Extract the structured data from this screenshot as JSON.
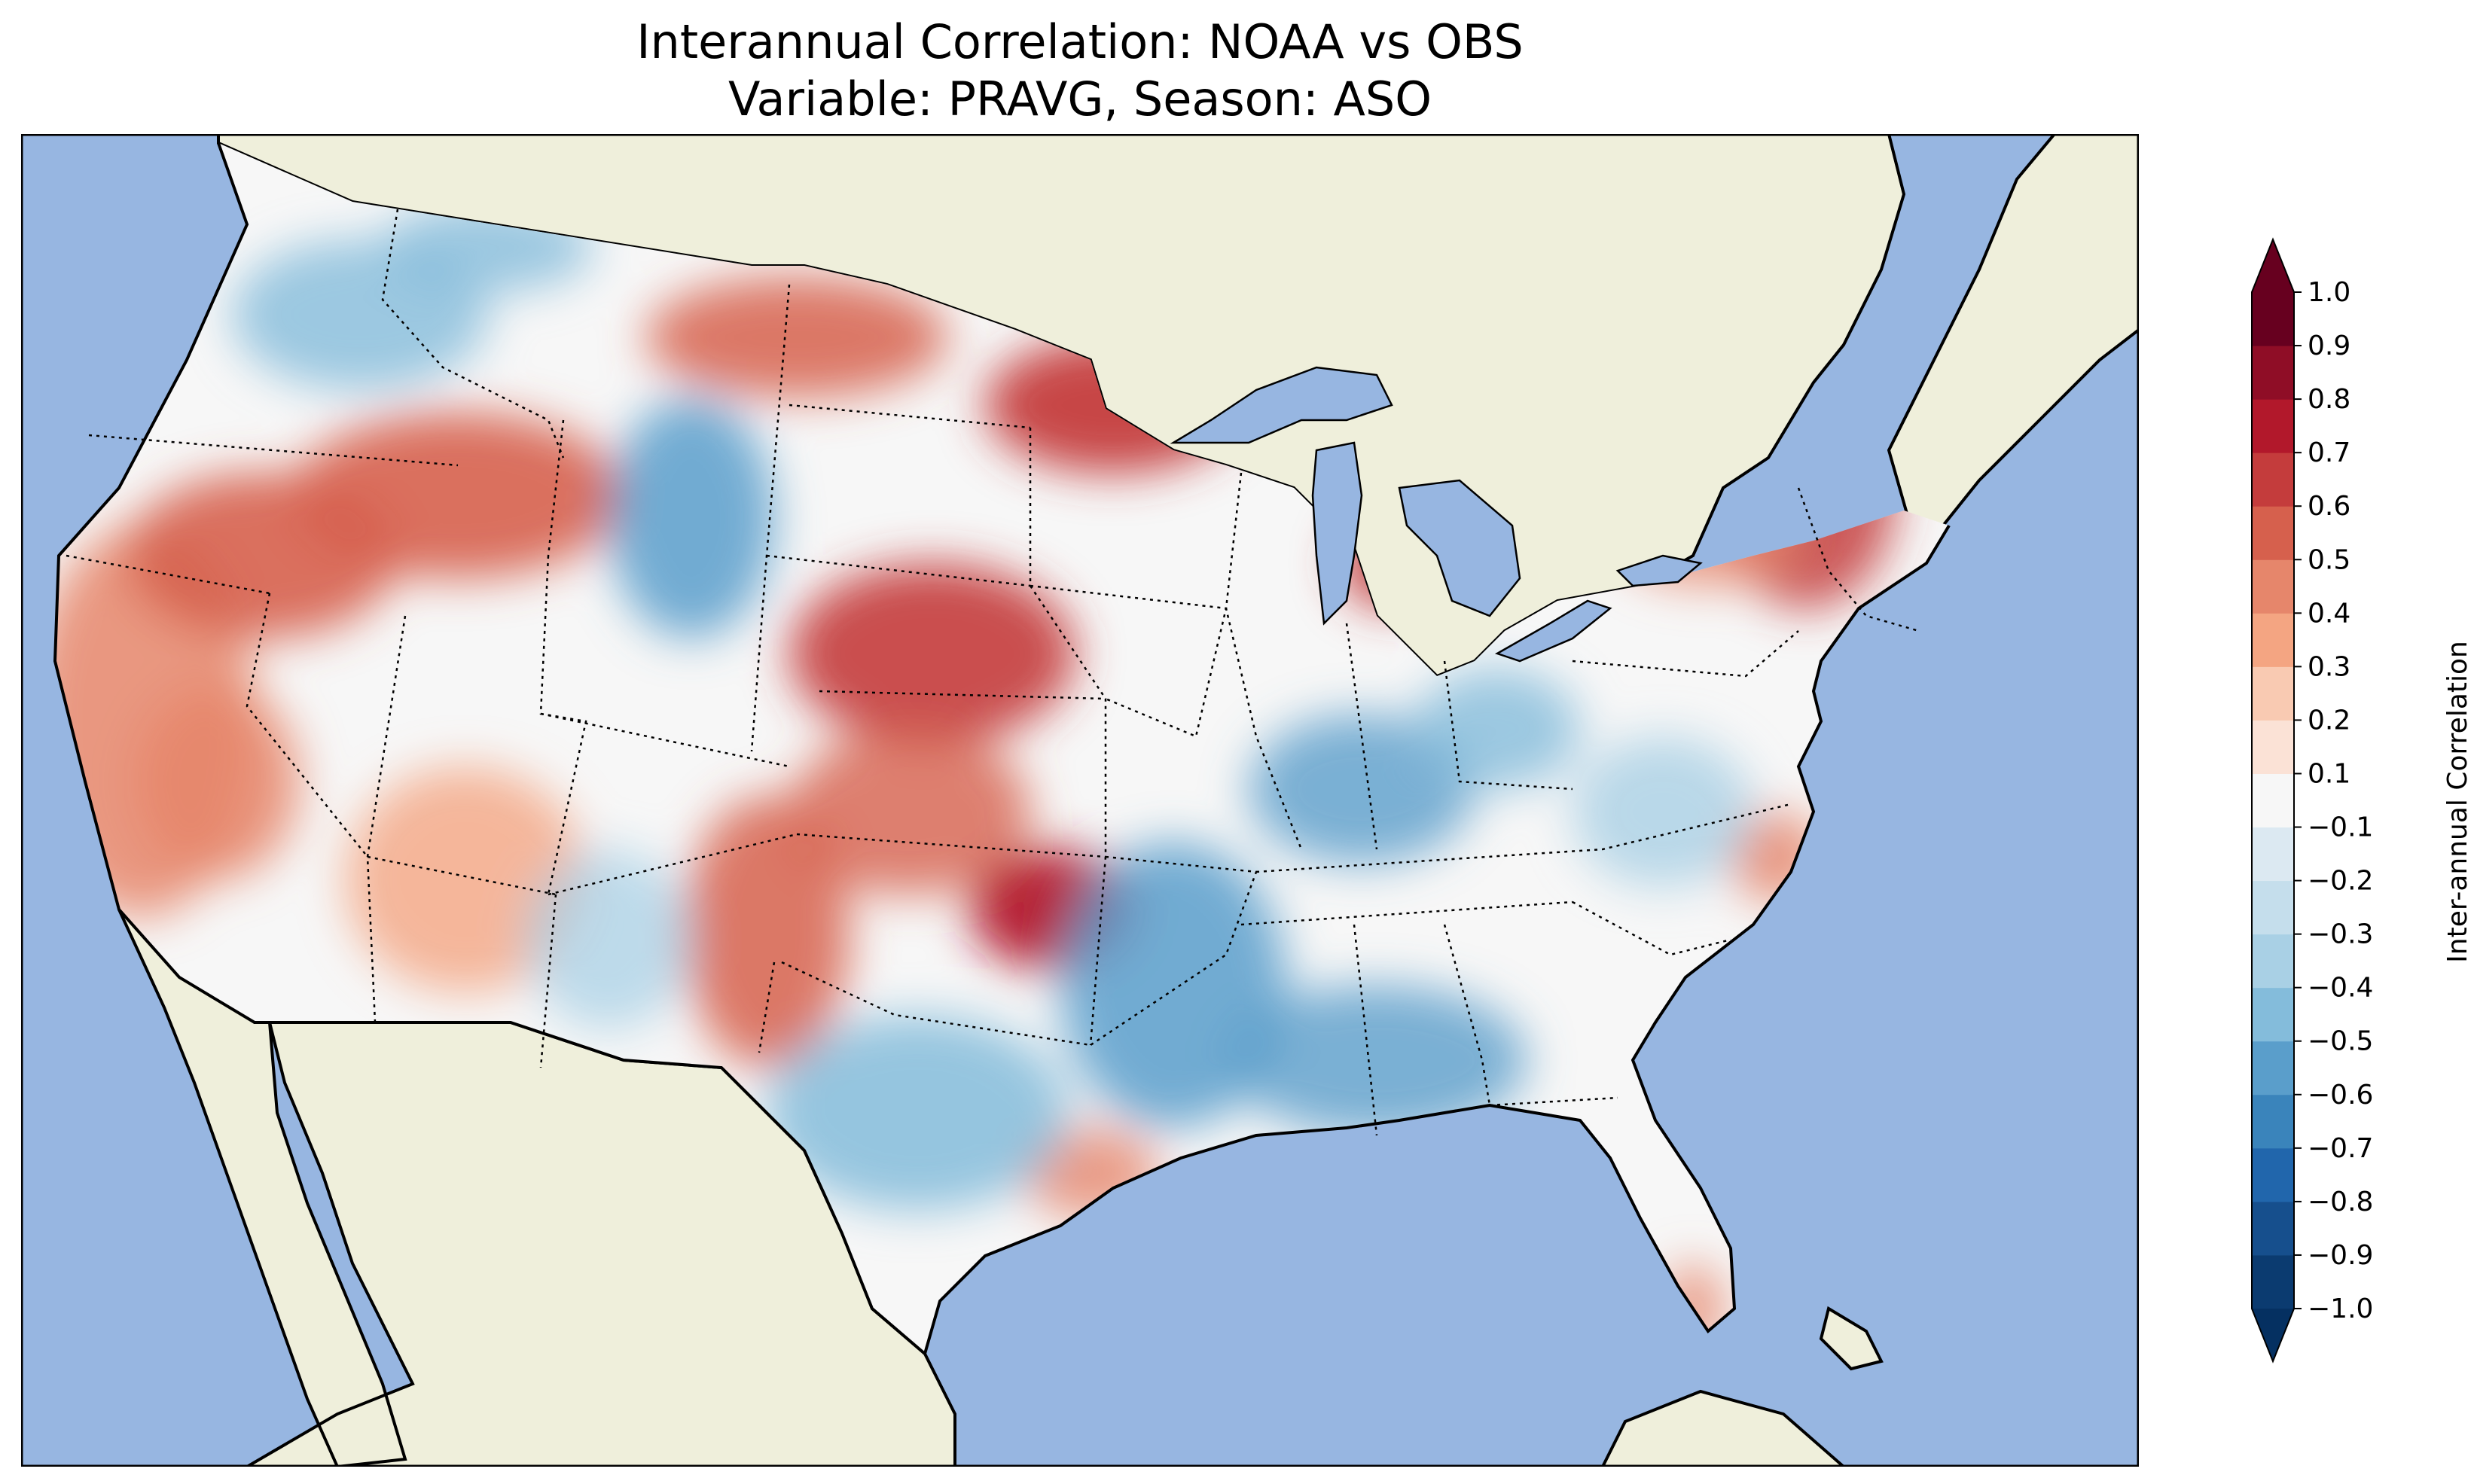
{
  "title": {
    "line1": "Interannual Correlation: NOAA vs OBS",
    "line2": "Variable: PRAVG, Season: ASO"
  },
  "map": {
    "description_colors": {
      "ocean": "#97b6e1",
      "land": "#efefdb",
      "border": "#000000"
    }
  },
  "colorbar": {
    "label": "Inter-annual Correlation",
    "extend": "both",
    "levels": [
      -1.0,
      -0.9,
      -0.8,
      -0.7,
      -0.6,
      -0.5,
      -0.4,
      -0.3,
      -0.2,
      -0.1,
      0.1,
      0.2,
      0.3,
      0.4,
      0.5,
      0.6,
      0.7,
      0.8,
      0.9,
      1.0
    ],
    "tick_labels": [
      "−1.0",
      "−0.9",
      "−0.8",
      "−0.7",
      "−0.6",
      "−0.5",
      "−0.4",
      "−0.3",
      "−0.2",
      "−0.1",
      "0.1",
      "0.2",
      "0.3",
      "0.4",
      "0.5",
      "0.6",
      "0.7",
      "0.8",
      "0.9",
      "1.0"
    ],
    "colors": [
      "#0b3b70",
      "#164f8d",
      "#2166ac",
      "#3a84bb",
      "#5a9ecb",
      "#84bcdb",
      "#a9d0e5",
      "#c5deec",
      "#dce9f2",
      "#f7f7f7",
      "#fbe2d6",
      "#f9cab2",
      "#f4a582",
      "#e6866b",
      "#d6604d",
      "#c43c3c",
      "#b2182b",
      "#8f0d26",
      "#67001f"
    ],
    "under_color": "#053061",
    "over_color": "#67001f"
  }
}
